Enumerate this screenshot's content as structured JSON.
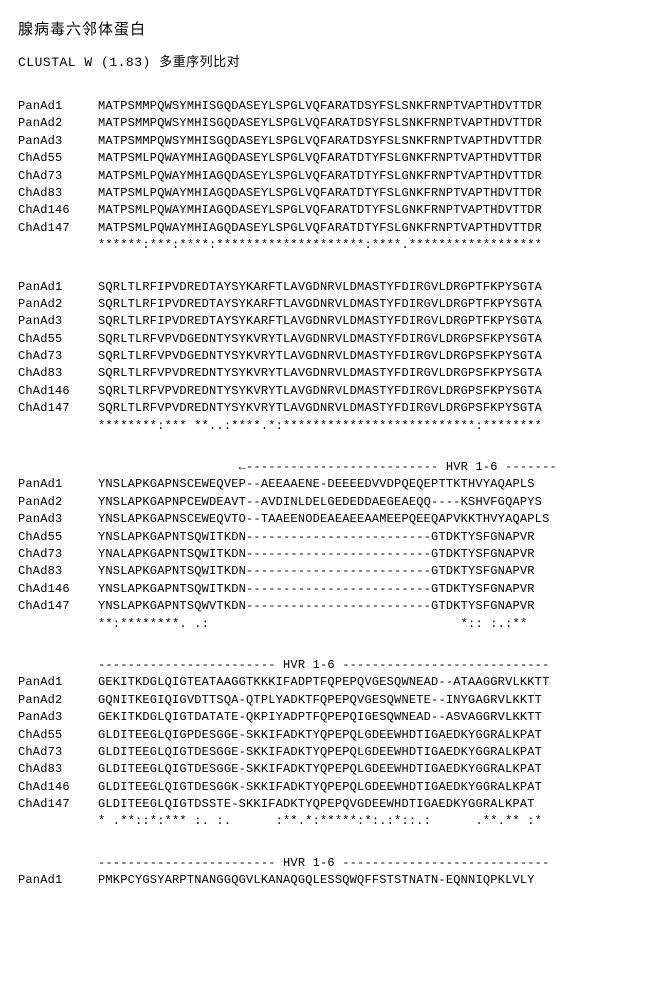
{
  "title_cn": "腺病毒六邻体蛋白",
  "subtitle_prefix": "CLUSTAL W (1.83) ",
  "subtitle_cn": "多重序列比对",
  "sequence_labels": [
    "PanAd1",
    "PanAd2",
    "PanAd3",
    "ChAd55",
    "ChAd73",
    "ChAd83",
    "ChAd146",
    "ChAd147"
  ],
  "blocks": [
    {
      "sequences": [
        "MATPSMMPQWSYMHISGQDASEYLSPGLVQFARATDSYFSLSNKFRNPTVAPTHDVTTDR",
        "MATPSMMPQWSYMHISGQDASEYLSPGLVQFARATDSYFSLSNKFRNPTVAPTHDVTTDR",
        "MATPSMMPQWSYMHISGQDASEYLSPGLVQFARATDSYFSLSNKFRNPTVAPTHDVTTDR",
        "MATPSMLPQWAYMHIAGQDASEYLSPGLVQFARATDTYFSLGNKFRNPTVAPTHDVTTDR",
        "MATPSMLPQWAYMHIAGQDASEYLSPGLVQFARATDTYFSLGNKFRNPTVAPTHDVTTDR",
        "MATPSMLPQWAYMHIAGQDASEYLSPGLVQFARATDTYFSLGNKFRNPTVAPTHDVTTDR",
        "MATPSMLPQWAYMHIAGQDASEYLSPGLVQFARATDTYFSLGNKFRNPTVAPTHDVTTDR",
        "MATPSMLPQWAYMHIAGQDASEYLSPGLVQFARATDTYFSLGNKFRNPTVAPTHDVTTDR"
      ],
      "consensus": "******:***:****:********************:****.******************"
    },
    {
      "sequences": [
        "SQRLTLRFIPVDREDTAYSYKARFTLAVGDNRVLDMASTYFDIRGVLDRGPTFKPYSGTA",
        "SQRLTLRFIPVDREDTAYSYKARFTLAVGDNRVLDMASTYFDIRGVLDRGPTFKPYSGTA",
        "SQRLTLRFIPVDREDTAYSYKARFTLAVGDNRVLDMASTYFDIRGVLDRGPTFKPYSGTA",
        "SQRLTLRFVPVDGEDNTYSYKVRYTLAVGDNRVLDMASTYFDIRGVLDRGPSFKPYSGTA",
        "SQRLTLRFVPVDGEDNTYSYKVRYTLAVGDNRVLDMASTYFDIRGVLDRGPSFKPYSGTA",
        "SQRLTLRFVPVDREDNTYSYKVRYTLAVGDNRVLDMASTYFDIRGVLDRGPSFKPYSGTA",
        "SQRLTLRFVPVDREDNTYSYKVRYTLAVGDNRVLDMASTYFDIRGVLDRGPSFKPYSGTA",
        "SQRLTLRFVPVDREDNTYSYKVRYTLAVGDNRVLDMASTYFDIRGVLDRGPSFKPYSGTA"
      ],
      "consensus": "********:*** **..:****.*:**************************:********"
    },
    {
      "header_marker": "                   ←-------------------------- HVR 1-6 -------",
      "sequences": [
        "YNSLAPKGAPNSCEWEQVEP--AEEAAENE-DEEEEDVVDPQEQEPTTKTHVYAQAPLS",
        "YNSLAPKGAPNPCEWDEAVT--AVDINLDELGEDEDDAEGEAEQQ----KSHVFGQAPYS",
        "YNSLAPKGAPNSCEWEQVTO--TAAEENODEAEAEEAAMEEPQEEQAPVKKTHVYAQAPLS",
        "YNSLAPKGAPNTSQWITKDN-------------------------GTDKTYSFGNAPVR",
        "YNALAPKGAPNTSQWITKDN-------------------------GTDKTYSFGNAPVR",
        "YNSLAPKGAPNTSQWITKDN-------------------------GTDKTYSFGNAPVR",
        "YNSLAPKGAPNTSQWITKDN-------------------------GTDKTYSFGNAPVR",
        "YNSLAPKGAPNTSQWVTKDN-------------------------GTDKTYSFGNAPVR"
      ],
      "consensus": "**:********. .:                                  *:: :.:** "
    },
    {
      "header_marker": "------------------------ HVR 1-6 ----------------------------",
      "sequences": [
        "GEKITKDGLQIGTEATAAGGTKKKIFADPTFQPEPQVGESQWNEAD--ATAAGGRVLKKTT",
        "GQNITKEGIQIGVDTTSQA-QTPLYADKTFQPEPQVGESQWNETE--INYGAGRVLKKTT",
        "GEKITKDGLQIGTDATATE-QKPIYADPTFQPEPQIGESQWNEAD--ASVAGGRVLKKTT",
        "GLDITEEGLQIGPDESGGE-SKKIFADKTYQPEPQLGDEEWHDTIGAEDKYGGRALKPAT",
        "GLDITEEGLQIGTDESGGE-SKKIFADKTYQPEPQLGDEEWHDTIGAEDKYGGRALKPAT",
        "GLDITEEGLQIGTDESGGE-SKKIFADKTYQPEPQLGDEEWHDTIGAEDKYGGRALKPAT",
        "GLDITEEGLQIGTDESGGK-SKKIFADKTYQPEPQLGDEEWHDTIGAEDKYGGRALKPAT",
        "GLDITEEGLQIGTDSSTE-SKKIFADKTYQPEPQVGDEEWHDTIGAEDKYGGRALKPAT"
      ],
      "consensus": "* .**::*:*** :. :.      :**.*:*****:*:.:*::.:      .**.** :*"
    },
    {
      "header_marker": "------------------------ HVR 1-6 ----------------------------",
      "final_label": "PanAd1",
      "final_sequence": "PMKPCYGSYARPTNANGGQGVLKANAQGQLESSQWQFFSTSTNATN-EQNNIQPKLVLY"
    }
  ],
  "colors": {
    "background": "#ffffff",
    "text": "#000000"
  },
  "font": {
    "mono_family": "Courier New",
    "cn_family": "SimSun",
    "title_size": 15,
    "body_size": 12
  }
}
